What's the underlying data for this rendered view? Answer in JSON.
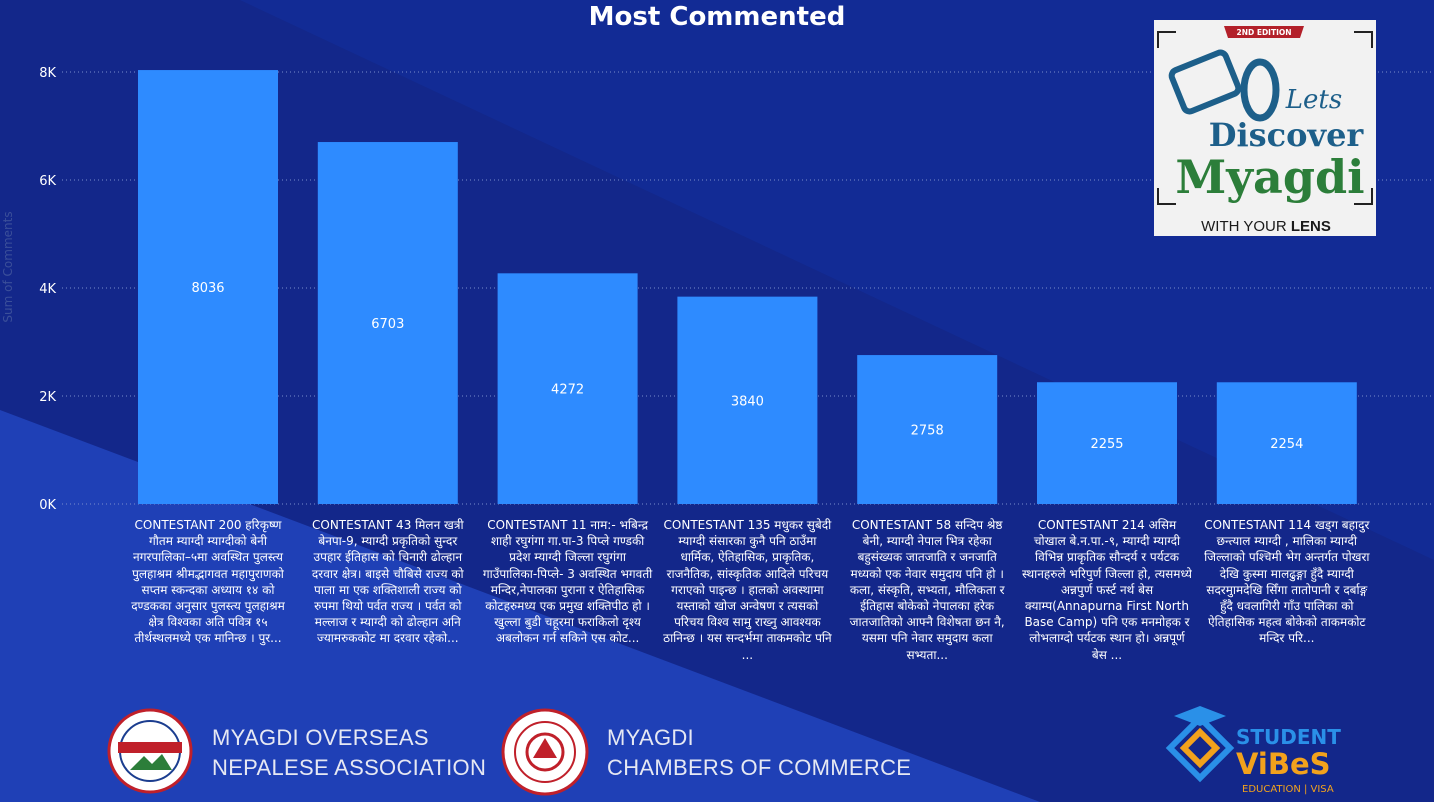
{
  "chart_data": {
    "type": "bar",
    "title": "Most Commented",
    "ylabel": "Sum of Comments",
    "ylim": [
      0,
      8000
    ],
    "yticks": [
      0,
      2000,
      4000,
      6000,
      8000
    ],
    "ytick_labels": [
      "0K",
      "2K",
      "4K",
      "6K",
      "8K"
    ],
    "grid": true,
    "bar_color": "#2e8bff",
    "categories": [
      "CONTESTANT 200 हरिकृष्ण गौतम म्याग्दी म्याग्दीको बेनी नगरपालिका–५मा अवस्थित पुलस्त्य पुलहाश्रम श्रीमद्भागवत महापुराणको सप्तम स्कन्दका अध्याय १४ को दण्डकका अनुसार पुलस्त्य पुलहाश्रम क्षेत्र विश्वका अति पवित्र १५ तीर्थस्थलमध्ये एक मानिन्छ । पुर...",
      "CONTESTANT 43 मिलन खत्री बेनपा-9, म्याग्दी प्रकृतिको सुन्दर उपहार ईतिहास को चिनारी ढोल्हान दरवार क्षेत्र। बाइसे चौबिसे राज्य को पाला मा एक शक्तिशाली राज्य को रुपमा थियो पर्वत राज्य । पर्वत को मल्लाज र म्याग्दी को ढोल्हान अनि ज्यामरुककोट मा दरवार रहेको...",
      "CONTESTANT 11 नाम:- भबिन्द्र शाही रघुगंगा गा.पा-3 पिप्ले गण्डकी प्रदेश म्याग्दी जिल्ला रघुगंगा गाउँपालिका-पिप्ले- 3 अवस्थित भगवती मन्दिर,नेपालका पुराना र ऐतिहासिक कोटहरुमध्य एक प्रमुख शक्तिपीठ हो । खुल्ला बुडी चहूरमा फराकिलो दृश्य अबलोकन गर्न सकिने एस कोट...",
      "CONTESTANT 135 मधुकर सुबेदी म्याग्दी संसारका कुनै पनि ठाउँमा धार्मिक, ऐतिहासिक, प्राकृतिक, राजनैतिक, सांस्कृतिक आदिले परिचय गराएको पाइन्छ । हालको अवस्थामा यस्ताको खोज अन्वेषण र त्यसको परिचय विश्व सामु राख्नु आवश्यक ठानिन्छ । यस सन्दर्भमा ताकमकोट पनि ...",
      "CONTESTANT 58 सन्दिप श्रेष्ठ बेनी, म्याग्दी नेपाल भित्र रहेका बहुसंख्यक जातजाति र जनजाति मध्यको एक नेवार समुदाय पनि हो । कला, संस्कृति, सभ्यता, मौलिकता र ईतिहास बोकेको नेपालका हरेक जातजातिको आफ्नै विशेषता छन नै, यसमा पनि नेवार समुदाय कला सभ्यता...",
      "CONTESTANT 214 असिम चोखाल बे.न.पा.-९, म्याग्दी म्याग्दी विभिन्न प्राकृतिक सौन्दर्य र पर्यटक स्थानहरुले भरिपुर्ण जिल्ला हो, त्यसमध्ये अन्नपुर्ण फर्स्ट नर्थ बेस क्याम्प(Annapurna First North Base Camp) पनि एक मनमोहक र लोभलाग्दो पर्यटक स्थान हो। अन्नपूर्ण बेस ...",
      "CONTESTANT 114 खड्ग बहादुर छन्त्याल म्याग्दी , मालिका म्याग्दी जिल्लाको पश्चिमी भेग अन्तर्गत पोखरा देखि कुस्मा मालढुङ्गा हुँदै म्याग्दी सदरमुामदेखि सिँगा तातोपानी र दर्बाङ्ग हुँदै धवलागिरी गाँउ पालिका को ऐतिहासिक महत्व बोकेको ताकमकोट मन्दिर परि..."
    ],
    "values": [
      8036,
      6703,
      4272,
      3840,
      2758,
      2255,
      2254
    ],
    "data_labels": [
      "8036",
      "6703",
      "4272",
      "3840",
      "2758",
      "2255",
      "2254"
    ]
  },
  "logo": {
    "edition": "2ND EDITION",
    "lets": "Lets",
    "discover": "Discover",
    "myagdi": "Myagdi",
    "tagline_a": "WITH YOUR ",
    "tagline_b": "LENS"
  },
  "footer": {
    "assoc_line1": "MYAGDI OVERSEAS",
    "assoc_line2": "NEPALESE ASSOCIATION",
    "chamber_line1": "MYAGDI",
    "chamber_line2": "CHAMBERS OF COMMERCE",
    "student": "STUDENT",
    "vibes": "ViBeS",
    "edu": "EDUCATION | VISA"
  },
  "colors": {
    "background_top": "#152a8f",
    "background_bottom": "#1e3fb5",
    "bar": "#2e8bff",
    "grid": "#7a8ccc"
  }
}
